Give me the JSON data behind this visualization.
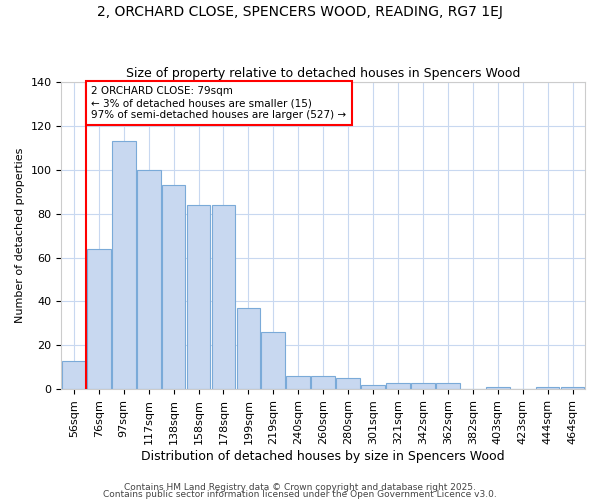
{
  "title1": "2, ORCHARD CLOSE, SPENCERS WOOD, READING, RG7 1EJ",
  "title2": "Size of property relative to detached houses in Spencers Wood",
  "xlabel": "Distribution of detached houses by size in Spencers Wood",
  "ylabel": "Number of detached properties",
  "bar_labels": [
    "56sqm",
    "76sqm",
    "97sqm",
    "117sqm",
    "138sqm",
    "158sqm",
    "178sqm",
    "199sqm",
    "219sqm",
    "240sqm",
    "260sqm",
    "280sqm",
    "301sqm",
    "321sqm",
    "342sqm",
    "362sqm",
    "382sqm",
    "403sqm",
    "423sqm",
    "444sqm",
    "464sqm"
  ],
  "bar_values": [
    13,
    64,
    113,
    100,
    93,
    84,
    84,
    37,
    26,
    6,
    6,
    5,
    2,
    3,
    3,
    3,
    0,
    1,
    0,
    1,
    1
  ],
  "bar_color": "#c8d8f0",
  "bar_edge_color": "#7aaad8",
  "property_line_x": 0.5,
  "annotation_text": "2 ORCHARD CLOSE: 79sqm\n← 3% of detached houses are smaller (15)\n97% of semi-detached houses are larger (527) →",
  "annotation_box_color": "white",
  "annotation_box_edge_color": "red",
  "line_color": "red",
  "ylim": [
    0,
    140
  ],
  "yticks": [
    0,
    20,
    40,
    60,
    80,
    100,
    120,
    140
  ],
  "footer1": "Contains HM Land Registry data © Crown copyright and database right 2025.",
  "footer2": "Contains public sector information licensed under the Open Government Licence v3.0.",
  "bg_color": "#ffffff",
  "plot_bg_color": "#ffffff",
  "grid_color": "#c8d8f0",
  "title1_fontsize": 10,
  "title2_fontsize": 9,
  "xlabel_fontsize": 9,
  "ylabel_fontsize": 8,
  "tick_fontsize": 8,
  "footer_fontsize": 6.5
}
